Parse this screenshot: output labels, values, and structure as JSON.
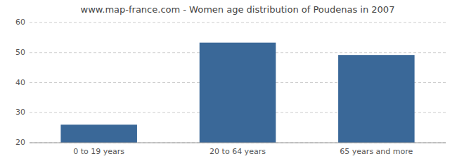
{
  "chart_data": {
    "type": "bar",
    "title": "www.map-france.com - Women age distribution of Poudenas in 2007",
    "categories": [
      "0 to 19 years",
      "20 to 64 years",
      "65 years and more"
    ],
    "values": [
      26,
      53.3,
      49.2
    ],
    "color": "#3a6898",
    "ylim": [
      20,
      60
    ],
    "yticks": [
      20,
      30,
      40,
      50,
      60
    ],
    "grid": true
  }
}
